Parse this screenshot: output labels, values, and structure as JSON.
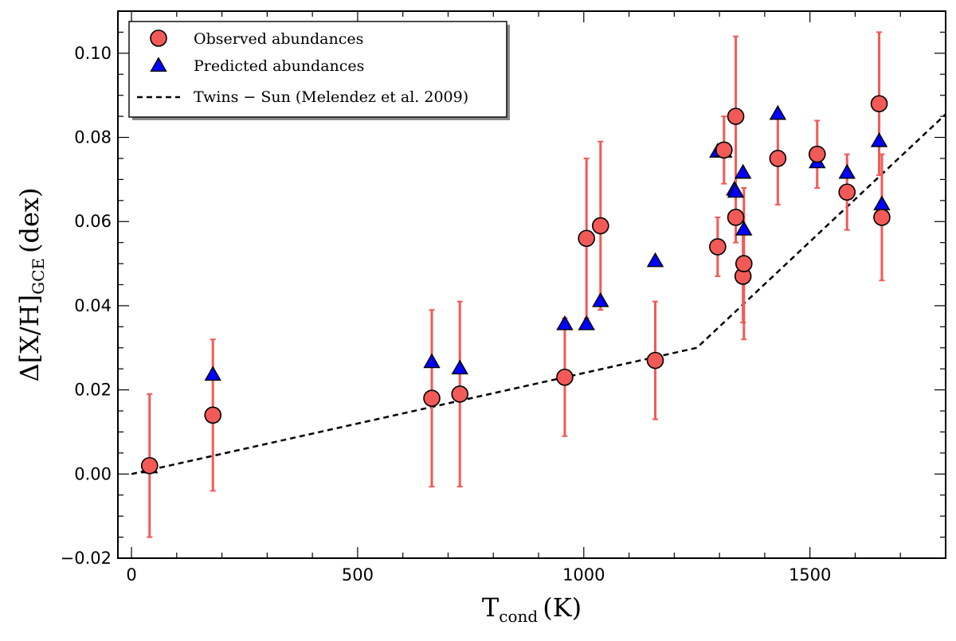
{
  "chart_data": {
    "type": "scatter",
    "title": "",
    "xlabel": {
      "main": "T",
      "sub": "cond",
      "unit": "(K)"
    },
    "ylabel": {
      "main": "Δ[X/H]",
      "sub": "GCE",
      "unit": "(dex)"
    },
    "xlim": [
      -30,
      1800
    ],
    "ylim": [
      -0.02,
      0.11
    ],
    "xticks": [
      0,
      500,
      1000,
      1500
    ],
    "xtick_labels": [
      "0",
      "500",
      "1000",
      "1500"
    ],
    "yticks": [
      -0.02,
      0.0,
      0.02,
      0.04,
      0.06,
      0.08,
      0.1
    ],
    "ytick_labels": [
      "−0.02",
      "0.00",
      "0.02",
      "0.04",
      "0.06",
      "0.08",
      "0.10"
    ],
    "grid": false,
    "legend_position": "top-left",
    "colors": {
      "observed": "#f25a57",
      "observed_edge": "#000000",
      "error_bar": "#f25a57",
      "predicted": "#0000ff",
      "predicted_edge": "#000000",
      "line": "#000000"
    },
    "series": [
      {
        "name": "Observed abundances",
        "marker": "circle",
        "points": [
          {
            "x": 40,
            "y": 0.002,
            "err": 0.017
          },
          {
            "x": 180,
            "y": 0.014,
            "err": 0.018
          },
          {
            "x": 664,
            "y": 0.018,
            "err": 0.021
          },
          {
            "x": 726,
            "y": 0.019,
            "err": 0.022
          },
          {
            "x": 958,
            "y": 0.023,
            "err": 0.014
          },
          {
            "x": 1006,
            "y": 0.056,
            "err": 0.019
          },
          {
            "x": 1037,
            "y": 0.059,
            "err": 0.02
          },
          {
            "x": 1158,
            "y": 0.027,
            "err": 0.014
          },
          {
            "x": 1296,
            "y": 0.054,
            "err": 0.007
          },
          {
            "x": 1310,
            "y": 0.077,
            "err": 0.008
          },
          {
            "x": 1336,
            "y": 0.085,
            "err": 0.019
          },
          {
            "x": 1336,
            "y": 0.061,
            "err": 0.006
          },
          {
            "x": 1352,
            "y": 0.047,
            "err": 0.011
          },
          {
            "x": 1354,
            "y": 0.05,
            "err": 0.018
          },
          {
            "x": 1429,
            "y": 0.075,
            "err": 0.011
          },
          {
            "x": 1516,
            "y": 0.076,
            "err": 0.008
          },
          {
            "x": 1582,
            "y": 0.067,
            "err": 0.009
          },
          {
            "x": 1653,
            "y": 0.088,
            "err": 0.017
          },
          {
            "x": 1659,
            "y": 0.061,
            "err": 0.015
          }
        ]
      },
      {
        "name": "Predicted abundances",
        "marker": "triangle",
        "points": [
          {
            "x": 40,
            "y": 0.0015
          },
          {
            "x": 180,
            "y": 0.0235
          },
          {
            "x": 664,
            "y": 0.0265
          },
          {
            "x": 726,
            "y": 0.025
          },
          {
            "x": 958,
            "y": 0.0355
          },
          {
            "x": 1006,
            "y": 0.0355
          },
          {
            "x": 1037,
            "y": 0.041
          },
          {
            "x": 1158,
            "y": 0.0505
          },
          {
            "x": 1296,
            "y": 0.0765
          },
          {
            "x": 1310,
            "y": 0.0765
          },
          {
            "x": 1333,
            "y": 0.0675
          },
          {
            "x": 1336,
            "y": 0.067
          },
          {
            "x": 1352,
            "y": 0.0715
          },
          {
            "x": 1354,
            "y": 0.058
          },
          {
            "x": 1429,
            "y": 0.0855
          },
          {
            "x": 1516,
            "y": 0.074
          },
          {
            "x": 1582,
            "y": 0.0715
          },
          {
            "x": 1653,
            "y": 0.079
          },
          {
            "x": 1659,
            "y": 0.064
          }
        ]
      },
      {
        "name": "Twins − Sun (Melendez et al. 2009)",
        "marker": "dashed-line",
        "points": [
          {
            "x": 0,
            "y": 0.0
          },
          {
            "x": 1250,
            "y": 0.03
          },
          {
            "x": 1800,
            "y": 0.0855
          }
        ]
      }
    ]
  }
}
